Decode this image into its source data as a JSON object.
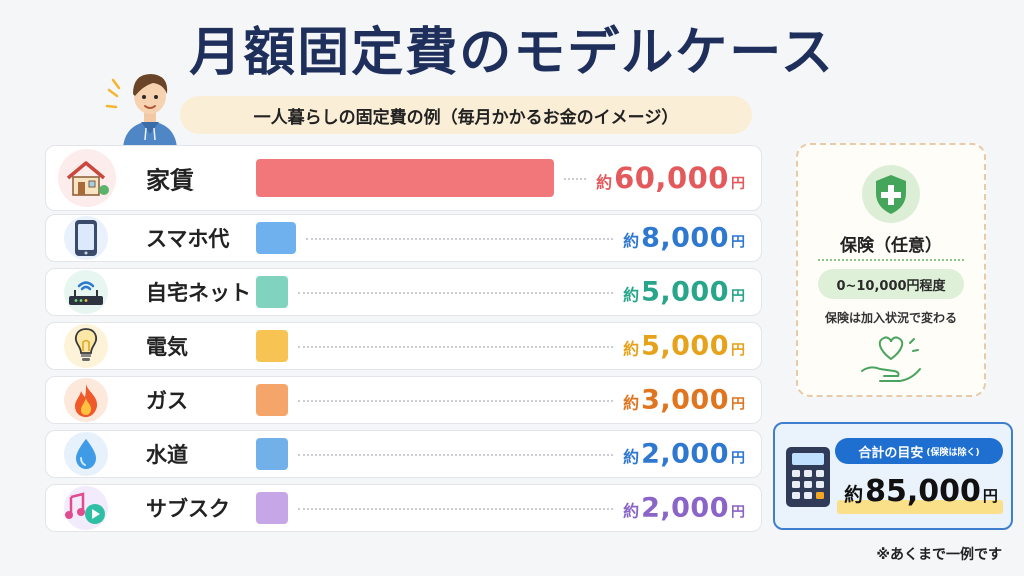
{
  "title": "月額固定費のモデルケース",
  "subtitle": "一人暮らしの固定費の例（毎月かかるお金のイメージ）",
  "chart_data": {
    "type": "bar",
    "orientation": "horizontal",
    "categories": [
      "家賃",
      "スマホ代",
      "自宅ネット",
      "電気",
      "ガス",
      "水道",
      "サブスク"
    ],
    "values": [
      60000,
      8000,
      5000,
      5000,
      3000,
      2000,
      2000
    ],
    "value_labels": [
      "60,000",
      "8,000",
      "5,000",
      "5,000",
      "3,000",
      "2,000",
      "2,000"
    ],
    "prefix": "約",
    "unit": "円",
    "colors": [
      "#f2777a",
      "#6fb1ef",
      "#7fd3bf",
      "#f7c453",
      "#f6a56a",
      "#72b0ea",
      "#c6a6e6"
    ],
    "value_colors": [
      "#e4595c",
      "#2f78d0",
      "#28a58a",
      "#e6a21a",
      "#e07520",
      "#2f78d0",
      "#8a64c6"
    ],
    "icons": [
      "house-icon",
      "smartphone-icon",
      "router-icon",
      "lightbulb-icon",
      "flame-icon",
      "water-drop-icon",
      "music-play-icon"
    ]
  },
  "insurance": {
    "title": "保険（任意）",
    "range": "0~10,000円程度",
    "note": "保険は加入状況で変わる"
  },
  "total": {
    "label": "合計の目安",
    "sub": "(保険は除く)",
    "prefix": "約",
    "value": "85,000",
    "unit": "円"
  },
  "footnote": "※あくまで一例です"
}
